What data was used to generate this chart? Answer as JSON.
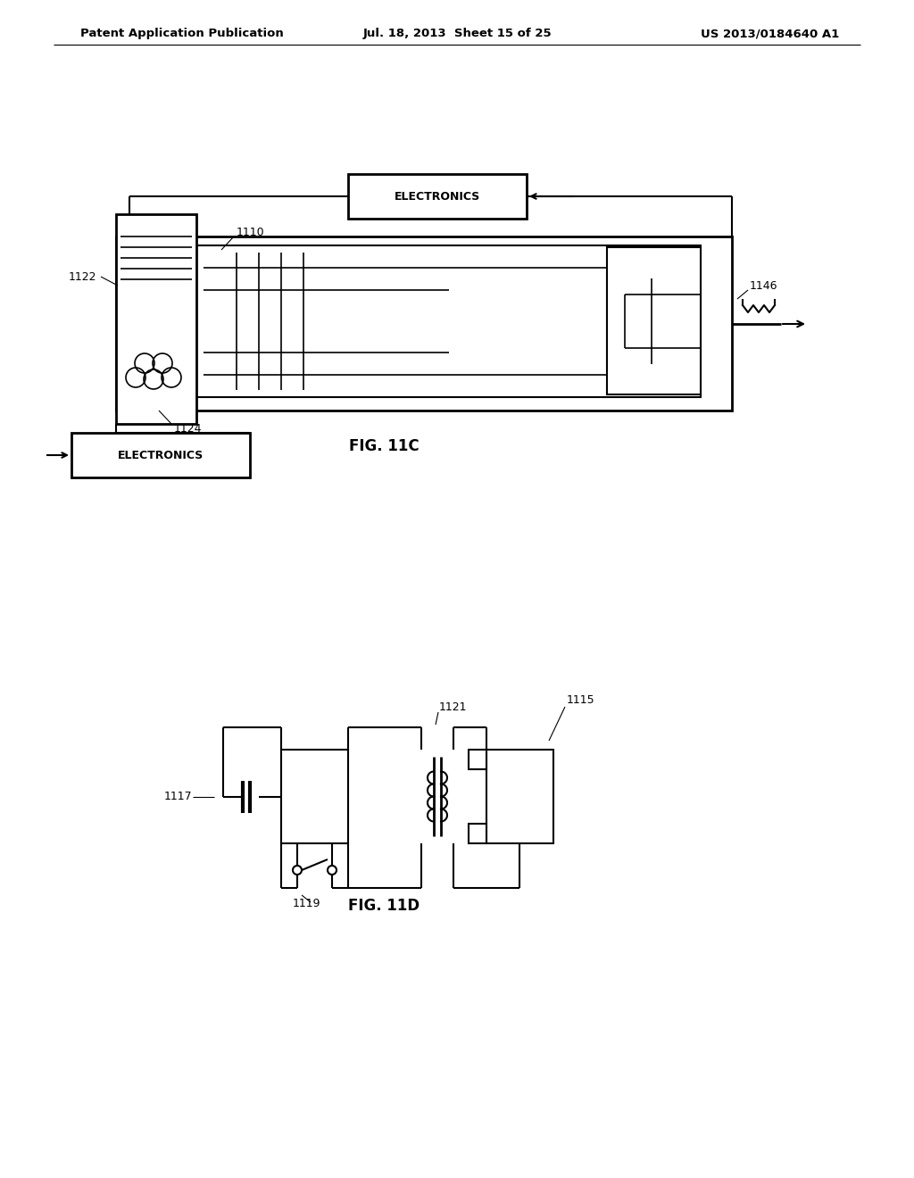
{
  "bg_color": "#ffffff",
  "line_color": "#000000",
  "header_left": "Patent Application Publication",
  "header_mid": "Jul. 18, 2013  Sheet 15 of 25",
  "header_right": "US 2013/0184640 A1",
  "fig11c_label": "FIG. 11C",
  "fig11d_label": "FIG. 11D"
}
